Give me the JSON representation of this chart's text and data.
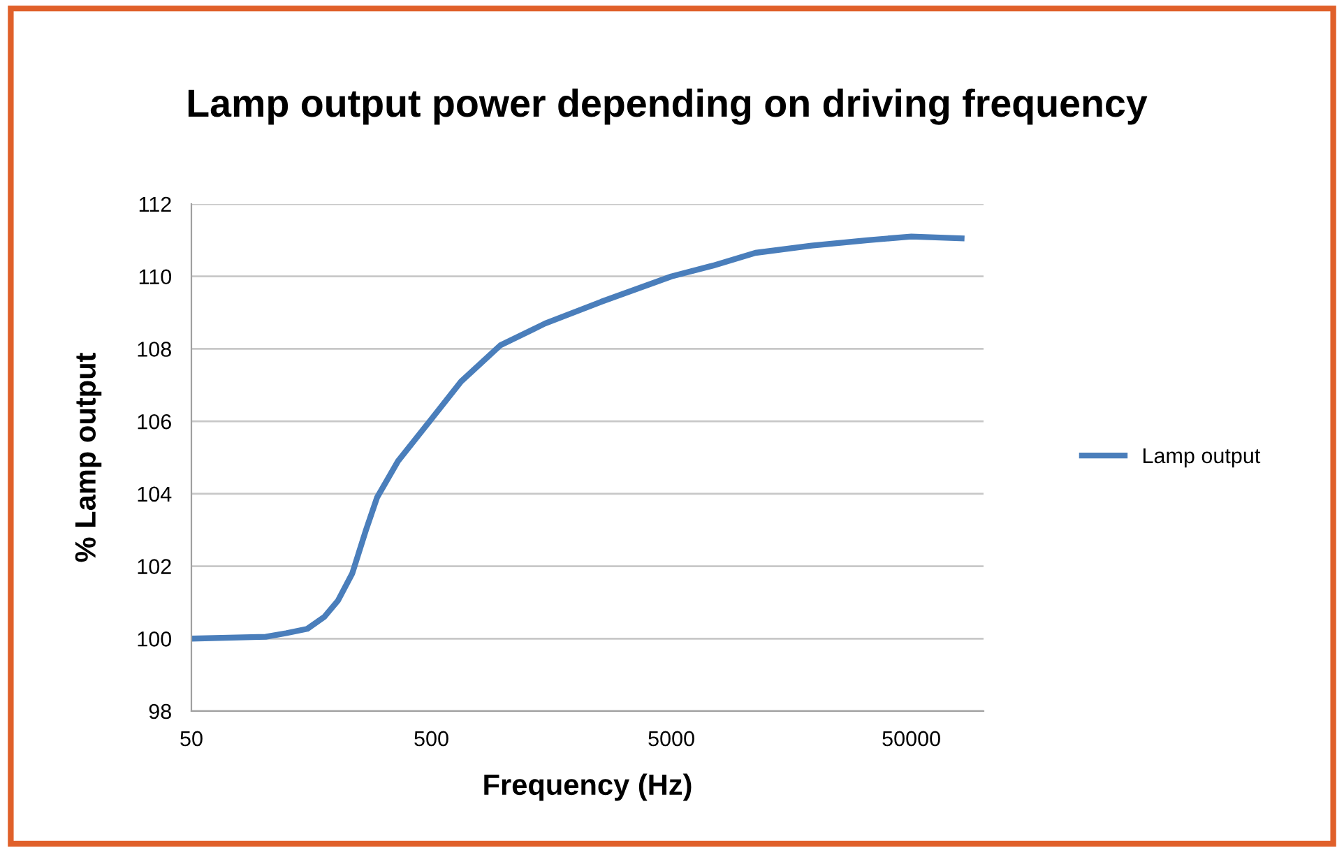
{
  "chart_data": {
    "type": "line",
    "title": "Lamp output power depending on driving frequency",
    "xlabel": "Frequency (Hz)",
    "ylabel": "% Lamp output",
    "series": [
      {
        "name": "Lamp output",
        "color": "#4a7ebb",
        "x": [
          50,
          102,
          124,
          152,
          179,
          204,
          234,
          267,
          297,
          363,
          500,
          665,
          970,
          1488,
          2550,
          5000,
          7470,
          11200,
          19200,
          32900,
          50000,
          81000
        ],
        "values": [
          100.0,
          100.05,
          100.15,
          100.27,
          100.6,
          101.05,
          101.8,
          103.0,
          103.9,
          104.9,
          106.06,
          107.1,
          108.1,
          108.7,
          109.3,
          110.0,
          110.3,
          110.65,
          110.85,
          111.0,
          111.1,
          111.05
        ]
      }
    ],
    "log": "x",
    "xlim": [
      50,
      100000
    ],
    "xticks": [
      50,
      500,
      5000,
      50000
    ],
    "ylim": [
      98,
      112
    ],
    "yticks": [
      98,
      100,
      102,
      104,
      106,
      108,
      110,
      112
    ],
    "grid": "y",
    "legend": "right",
    "marker": "none",
    "line_style": "solid"
  }
}
